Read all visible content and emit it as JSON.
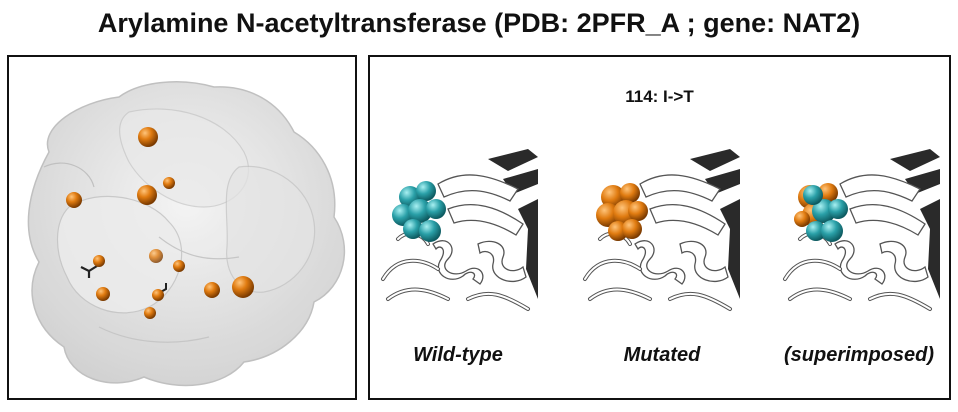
{
  "title": "Arylamine N-acetyltransferase (PDB: 2PFR_A ; gene: NAT2)",
  "mutation_label": "114: I->T",
  "captions": {
    "wild_type": "Wild-type",
    "mutated": "Mutated",
    "superimposed": "(superimposed)"
  },
  "colors": {
    "surface": "#d9d9d9",
    "site": "#e07b10",
    "wild_type_residue": "#2aa0a8",
    "cartoon": "#ffffff",
    "cartoon_shadow": "#2a2a2a"
  }
}
